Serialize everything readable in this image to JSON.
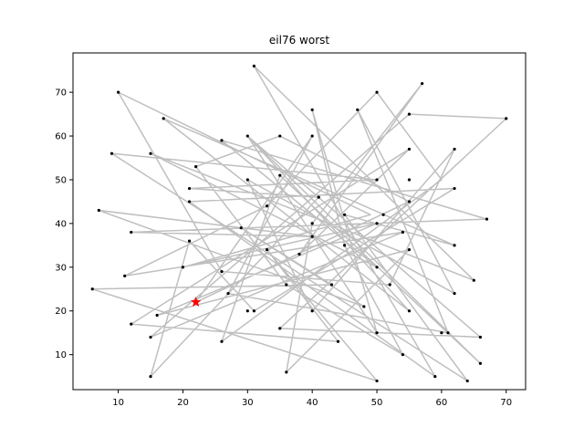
{
  "chart_data": {
    "type": "line",
    "title": "eil76 worst",
    "xlabel": "",
    "ylabel": "",
    "xlim": [
      3,
      73
    ],
    "ylim": [
      2,
      79
    ],
    "xticks": [
      10,
      20,
      30,
      40,
      50,
      60,
      70
    ],
    "yticks": [
      10,
      20,
      30,
      40,
      50,
      60,
      70
    ],
    "grid": false,
    "colors": {
      "route": "#bfbfbf",
      "city": "#000000",
      "start": "#ff0000"
    },
    "start": [
      22,
      22
    ],
    "route": [
      [
        22,
        22
      ],
      [
        40,
        60
      ],
      [
        27,
        24
      ],
      [
        61,
        15
      ],
      [
        47,
        66
      ],
      [
        62,
        24
      ],
      [
        30,
        50
      ],
      [
        40,
        20
      ],
      [
        62,
        57
      ],
      [
        52,
        26
      ],
      [
        26,
        29
      ],
      [
        10,
        70
      ],
      [
        49,
        42
      ],
      [
        20,
        30
      ],
      [
        50,
        40
      ],
      [
        16,
        19
      ],
      [
        55,
        34
      ],
      [
        36,
        6
      ],
      [
        40,
        40
      ],
      [
        57,
        72
      ],
      [
        38,
        33
      ],
      [
        55,
        57
      ],
      [
        12,
        17
      ],
      [
        44,
        13
      ],
      [
        33,
        34
      ],
      [
        50,
        4
      ],
      [
        6,
        25
      ],
      [
        43,
        26
      ],
      [
        29,
        39
      ],
      [
        48,
        21
      ],
      [
        7,
        43
      ],
      [
        40,
        37
      ],
      [
        12,
        38
      ],
      [
        67,
        41
      ],
      [
        26,
        59
      ],
      [
        50,
        30
      ],
      [
        15,
        56
      ],
      [
        65,
        27
      ],
      [
        31,
        76
      ],
      [
        59,
        5
      ],
      [
        21,
        45
      ],
      [
        62,
        48
      ],
      [
        31,
        20
      ],
      [
        21,
        36
      ],
      [
        15,
        5
      ],
      [
        41,
        46
      ],
      [
        21,
        48
      ],
      [
        50,
        50
      ],
      [
        9,
        56
      ],
      [
        64,
        4
      ],
      [
        45,
        42
      ],
      [
        62,
        35
      ],
      [
        17,
        64
      ],
      [
        55,
        20
      ],
      [
        30,
        60
      ],
      [
        66,
        8
      ],
      [
        35,
        51
      ],
      [
        26,
        13
      ],
      [
        60,
        50
      ],
      [
        50,
        70
      ],
      [
        33,
        44
      ],
      [
        11,
        28
      ],
      [
        54,
        38
      ],
      [
        15,
        14
      ],
      [
        55,
        65
      ],
      [
        70,
        64
      ],
      [
        35,
        16
      ],
      [
        66,
        14
      ],
      [
        30,
        60
      ],
      [
        50,
        15
      ],
      [
        40,
        66
      ],
      [
        45,
        35
      ],
      [
        54,
        10
      ],
      [
        36,
        26
      ],
      [
        22,
        53
      ],
      [
        35,
        60
      ],
      [
        55,
        45
      ],
      [
        22,
        22
      ]
    ],
    "cities": [
      [
        22,
        22
      ],
      [
        36,
        26
      ],
      [
        21,
        45
      ],
      [
        45,
        35
      ],
      [
        55,
        20
      ],
      [
        33,
        34
      ],
      [
        50,
        50
      ],
      [
        55,
        45
      ],
      [
        26,
        59
      ],
      [
        40,
        66
      ],
      [
        55,
        65
      ],
      [
        35,
        51
      ],
      [
        62,
        35
      ],
      [
        62,
        57
      ],
      [
        62,
        24
      ],
      [
        21,
        36
      ],
      [
        33,
        44
      ],
      [
        9,
        56
      ],
      [
        62,
        48
      ],
      [
        66,
        14
      ],
      [
        44,
        13
      ],
      [
        26,
        13
      ],
      [
        11,
        28
      ],
      [
        7,
        43
      ],
      [
        17,
        64
      ],
      [
        41,
        46
      ],
      [
        55,
        34
      ],
      [
        35,
        16
      ],
      [
        52,
        26
      ],
      [
        43,
        26
      ],
      [
        31,
        76
      ],
      [
        22,
        53
      ],
      [
        26,
        29
      ],
      [
        50,
        40
      ],
      [
        55,
        50
      ],
      [
        54,
        10
      ],
      [
        60,
        15
      ],
      [
        47,
        66
      ],
      [
        30,
        60
      ],
      [
        30,
        50
      ],
      [
        12,
        17
      ],
      [
        15,
        14
      ],
      [
        16,
        19
      ],
      [
        21,
        48
      ],
      [
        50,
        30
      ],
      [
        51,
        42
      ],
      [
        50,
        15
      ],
      [
        48,
        21
      ],
      [
        12,
        38
      ],
      [
        15,
        56
      ],
      [
        29,
        39
      ],
      [
        54,
        38
      ],
      [
        55,
        57
      ],
      [
        67,
        41
      ],
      [
        10,
        70
      ],
      [
        6,
        25
      ],
      [
        65,
        27
      ],
      [
        40,
        60
      ],
      [
        70,
        64
      ],
      [
        64,
        4
      ],
      [
        36,
        6
      ],
      [
        30,
        20
      ],
      [
        20,
        30
      ],
      [
        15,
        5
      ],
      [
        50,
        70
      ],
      [
        57,
        72
      ],
      [
        45,
        42
      ],
      [
        38,
        33
      ],
      [
        50,
        4
      ],
      [
        66,
        8
      ],
      [
        59,
        5
      ],
      [
        35,
        60
      ],
      [
        27,
        24
      ],
      [
        40,
        20
      ],
      [
        40,
        37
      ],
      [
        40,
        40
      ],
      [
        31,
        20
      ],
      [
        61,
        15
      ]
    ]
  }
}
